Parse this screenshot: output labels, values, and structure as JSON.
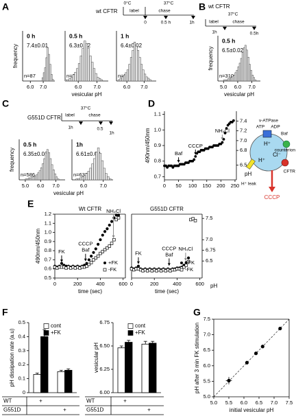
{
  "panels": [
    "A",
    "B",
    "C",
    "D",
    "E",
    "F",
    "G"
  ],
  "schematic_a": {
    "title": "wt CFTR",
    "temps": [
      "0°C",
      "37°C"
    ],
    "phases": [
      "label",
      "chase"
    ],
    "times": [
      "0",
      "0.5 h",
      "1h"
    ]
  },
  "schematic_b": {
    "title": "wt CFTR",
    "temp": "37°C",
    "phases": [
      "label",
      "chase"
    ],
    "times": [
      "1h",
      "0.5h"
    ]
  },
  "schematic_c": {
    "title": "G551D CFTR",
    "temp": "37°C",
    "phases": [
      "label",
      "chase"
    ],
    "times": [
      "1h",
      "0.5",
      "1h"
    ]
  },
  "diagram": {
    "pump": "v-ATPase",
    "atp": "ATP",
    "adp": "ADP",
    "inhibitor": "Baf",
    "counterion": "counterion",
    "proton": "H⁺",
    "chloride": "Cl⁻",
    "leak": "H⁺ leak",
    "channel": "CFTR",
    "uncoupler": "CCCP"
  },
  "chart_data": [
    {
      "type": "histogram",
      "title": "0 h",
      "mean_label": "7.4±0.01",
      "n_label": "n=87",
      "ylabel": "frequency",
      "xlim": [
        5.4,
        7.9
      ],
      "xticks": [
        {
          "value": 6,
          "label": "6.0"
        },
        {
          "value": 7,
          "label": "7.0"
        }
      ],
      "ylim": [
        0,
        30
      ],
      "bins": [
        6.9,
        7.0,
        7.1,
        7.2,
        7.3,
        7.4,
        7.5,
        7.6,
        7.7,
        7.8
      ],
      "counts": [
        2,
        5,
        8,
        14,
        20,
        16,
        10,
        4,
        1
      ]
    },
    {
      "type": "histogram",
      "title": "0.5 h",
      "mean_label": "6.3±0.02",
      "n_label": "n=350",
      "xlabel": "vesicular pH",
      "xlim": [
        5.3,
        7.6
      ],
      "xticks": [
        {
          "value": 6,
          "label": "6.0"
        },
        {
          "value": 7,
          "label": "7.0"
        }
      ],
      "ylim": [
        0,
        40
      ],
      "bins": [
        5.3,
        5.4,
        5.5,
        5.6,
        5.7,
        5.8,
        5.9,
        6.0,
        6.1,
        6.2,
        6.3,
        6.4,
        6.5,
        6.6,
        6.7,
        6.8,
        6.9,
        7.0,
        7.1,
        7.2,
        7.3
      ],
      "counts": [
        1,
        1,
        2,
        3,
        5,
        7,
        10,
        14,
        20,
        26,
        32,
        30,
        26,
        20,
        15,
        10,
        6,
        3,
        2,
        1
      ]
    },
    {
      "type": "histogram",
      "title": "1 h",
      "mean_label": "6.4±0.02",
      "n_label": "n=304",
      "xlim": [
        5.4,
        7.7
      ],
      "xticks": [
        {
          "value": 6,
          "label": "6.0"
        },
        {
          "value": 7,
          "label": "7.0"
        }
      ],
      "ylim": [
        0,
        36
      ],
      "bins": [
        5.5,
        5.6,
        5.7,
        5.8,
        5.9,
        6.0,
        6.1,
        6.2,
        6.3,
        6.4,
        6.5,
        6.6,
        6.7,
        6.8,
        6.9,
        7.0,
        7.1,
        7.2,
        7.3,
        7.4
      ],
      "counts": [
        1,
        2,
        3,
        4,
        6,
        8,
        12,
        17,
        22,
        28,
        25,
        22,
        17,
        12,
        8,
        5,
        3,
        2,
        1
      ]
    },
    {
      "type": "histogram",
      "title": "0.5 h",
      "mean_label": "6.5±0.02",
      "n_label": "n=310",
      "ylabel": "frequency",
      "xlabel": "vesicular pH",
      "xlim": [
        4.6,
        7.6
      ],
      "xticks": [
        {
          "value": 5,
          "label": "5.0"
        },
        {
          "value": 6,
          "label": "6.0"
        },
        {
          "value": 7,
          "label": "7.0"
        }
      ],
      "ylim": [
        0,
        38
      ],
      "bins": [
        5.0,
        5.1,
        5.2,
        5.3,
        5.4,
        5.5,
        5.6,
        5.7,
        5.8,
        5.9,
        6.0,
        6.1,
        6.2,
        6.3,
        6.4,
        6.5,
        6.6,
        6.7,
        6.8,
        6.9,
        7.0,
        7.1,
        7.2,
        7.3
      ],
      "counts": [
        1,
        1,
        1,
        2,
        2,
        3,
        4,
        5,
        7,
        9,
        12,
        15,
        19,
        24,
        28,
        30,
        26,
        20,
        14,
        9,
        5,
        3,
        1
      ]
    },
    {
      "type": "histogram",
      "title": "0.5 h",
      "mean_label": "6.35±0.02",
      "n_label": "n=586",
      "ylabel": "frequency",
      "xlabel": "vesicular pH",
      "xlim": [
        4.6,
        7.6
      ],
      "xticks": [
        {
          "value": 5,
          "label": "5.0"
        },
        {
          "value": 6,
          "label": "6.0"
        },
        {
          "value": 7,
          "label": "7.0"
        }
      ],
      "ylim": [
        0,
        40
      ],
      "bins": [
        5.0,
        5.1,
        5.2,
        5.3,
        5.4,
        5.5,
        5.6,
        5.7,
        5.8,
        5.9,
        6.0,
        6.1,
        6.2,
        6.3,
        6.4,
        6.5,
        6.6,
        6.7,
        6.8,
        6.9,
        7.0,
        7.1,
        7.2
      ],
      "counts": [
        1,
        1,
        2,
        2,
        3,
        3,
        4,
        5,
        7,
        9,
        12,
        16,
        21,
        26,
        30,
        27,
        21,
        15,
        10,
        6,
        3,
        1
      ]
    },
    {
      "type": "histogram",
      "title": "1h",
      "mean_label": "6.61±0.02",
      "n_label": "n=632",
      "xlim": [
        5.4,
        7.5
      ],
      "xticks": [
        {
          "value": 6,
          "label": "6.0"
        },
        {
          "value": 7,
          "label": "7.0"
        }
      ],
      "ylim": [
        0,
        38
      ],
      "bins": [
        5.6,
        5.7,
        5.8,
        5.9,
        6.0,
        6.1,
        6.2,
        6.3,
        6.4,
        6.5,
        6.6,
        6.7,
        6.8,
        6.9,
        7.0,
        7.1,
        7.2,
        7.3,
        7.4
      ],
      "counts": [
        1,
        1,
        2,
        3,
        4,
        6,
        8,
        11,
        15,
        20,
        26,
        30,
        25,
        18,
        11,
        6,
        3,
        1
      ]
    },
    {
      "type": "scatter",
      "ylabel": "490nm/450nm",
      "y2label": "pH",
      "marker": "circle",
      "color": "#000000",
      "x": [
        0,
        5,
        10,
        15,
        20,
        25,
        30,
        35,
        40,
        45,
        50,
        55,
        60,
        65,
        70,
        75,
        80,
        85,
        90,
        95,
        100,
        105,
        110,
        115,
        120,
        125,
        130,
        135,
        140,
        145,
        150,
        155,
        160,
        165,
        170,
        175,
        180,
        185,
        190,
        195,
        200,
        205,
        210,
        215,
        220,
        225,
        230,
        235,
        240,
        245
      ],
      "values": [
        0.77,
        0.77,
        0.76,
        0.77,
        0.77,
        0.77,
        0.76,
        0.77,
        0.77,
        0.77,
        0.77,
        0.78,
        0.78,
        0.78,
        0.78,
        0.79,
        0.79,
        0.79,
        0.8,
        0.8,
        0.8,
        0.81,
        0.83,
        0.85,
        0.86,
        0.86,
        0.87,
        0.87,
        0.87,
        0.88,
        0.88,
        0.88,
        0.89,
        0.89,
        0.89,
        0.9,
        0.9,
        0.9,
        0.9,
        0.91,
        0.91,
        0.92,
        0.94,
        0.98,
        1.01,
        1.03,
        1.04,
        1.05,
        1.05,
        1.06
      ],
      "xlim": [
        0,
        255
      ],
      "xticks": [
        0,
        50,
        100,
        150,
        200,
        250
      ],
      "ylim": [
        0.68,
        1.12
      ],
      "yticks": [
        0.7,
        0.8,
        0.9,
        {
          "value": 1,
          "label": "1.0"
        },
        1.1
      ],
      "y2lim": [
        6.2,
        7.6
      ],
      "y2ticks": [
        6.5,
        6.8,
        {
          "value": 7,
          "label": "7.0"
        },
        7.2,
        7.4
      ],
      "annotations": [
        "Baf",
        "CCCP",
        "NH₄Cl"
      ]
    },
    {
      "type": "scatter",
      "title": "Wt CFTR",
      "ylabel": "490nm/450nm",
      "xlabel": "time (sec)",
      "x": [
        0,
        20,
        40,
        60,
        80,
        100,
        120,
        140,
        160,
        180,
        200,
        220,
        240,
        260,
        280,
        300,
        320,
        340,
        360,
        380,
        400,
        420,
        440,
        460,
        480,
        500,
        520,
        540,
        560
      ],
      "series": [
        {
          "name": "+FK",
          "marker": "circle",
          "color": "#000000",
          "values": [
            0.63,
            0.62,
            0.63,
            0.66,
            0.64,
            0.63,
            0.63,
            0.62,
            0.63,
            0.62,
            0.63,
            0.62,
            0.63,
            0.64,
            0.66,
            0.7,
            0.74,
            0.78,
            0.82,
            0.87,
            0.92,
            0.97,
            1.01,
            1.04,
            1.08,
            1.12,
            1.16,
            1.19,
            1.19
          ]
        },
        {
          "name": "-FK",
          "marker": "square",
          "color": "#000000",
          "values": [
            0.62,
            0.61,
            0.62,
            0.62,
            0.62,
            0.61,
            0.62,
            0.61,
            0.62,
            0.61,
            0.62,
            0.61,
            0.62,
            0.62,
            0.63,
            0.65,
            0.67,
            0.7,
            0.72,
            0.74,
            0.77,
            0.79,
            0.81,
            0.83,
            0.85,
            0.88,
            0.92,
            1.14,
            1.16
          ]
        }
      ],
      "xlim": [
        0,
        620
      ],
      "xticks": [
        0,
        200,
        400,
        600
      ],
      "ylim": [
        0.5,
        1.2
      ],
      "yticks": [
        0.5,
        0.6,
        0.7,
        0.8,
        0.9,
        {
          "value": 1,
          "label": "1.0"
        },
        1.1,
        1.2
      ],
      "annotations": [
        "FK",
        "CCCP",
        "Baf",
        "NH₄Cl"
      ]
    },
    {
      "type": "scatter",
      "title": "G551D CFTR",
      "xlabel": "time (sec)",
      "y2label": "pH",
      "x": [
        0,
        20,
        40,
        60,
        80,
        100,
        120,
        140,
        160,
        180,
        200,
        220,
        240,
        260,
        280,
        300,
        320,
        340,
        360,
        380,
        400,
        420,
        440,
        460,
        480,
        500,
        520,
        540,
        560
      ],
      "series": [
        {
          "name": "+FK",
          "marker": "circle",
          "color": "#000000",
          "values": [
            0.61,
            0.6,
            0.61,
            0.63,
            0.6,
            0.59,
            0.6,
            0.59,
            0.6,
            0.59,
            0.6,
            0.59,
            0.6,
            0.59,
            0.6,
            0.59,
            0.6,
            0.59,
            0.6,
            0.6,
            0.61,
            0.61,
            0.62,
            0.64,
            0.67,
            0.72,
            null,
            null,
            null
          ]
        },
        {
          "name": "-FK",
          "marker": "square",
          "color": "#000000",
          "values": [
            0.6,
            0.59,
            0.6,
            0.6,
            0.59,
            0.58,
            0.59,
            0.58,
            0.59,
            0.58,
            0.59,
            0.58,
            0.59,
            0.58,
            0.59,
            0.58,
            0.59,
            0.58,
            0.59,
            0.59,
            0.6,
            0.6,
            0.61,
            0.62,
            0.64,
            0.68,
            1.14,
            1.15,
            1.13
          ]
        }
      ],
      "xlim": [
        0,
        620
      ],
      "xticks": [
        0,
        200,
        400,
        600
      ],
      "ylim": [
        0.5,
        1.2
      ],
      "y2lim": [
        6.1,
        7.6
      ],
      "y2ticks": [
        6.5,
        6.75,
        {
          "value": 7,
          "label": "7.0"
        },
        7.5
      ],
      "annotations": [
        "FK",
        "CCCP",
        "Baf",
        "NH₄Cl"
      ]
    },
    {
      "type": "bar",
      "ylabel": "pH dissipation rate (a.u)",
      "categories": [
        "WT",
        "G551D"
      ],
      "table_mark": "+",
      "series": [
        {
          "name": "cont",
          "color": "#ffffff",
          "values": [
            0.13,
            0.15
          ],
          "errors": [
            0.01,
            0.01
          ]
        },
        {
          "name": "+FK",
          "color": "#000000",
          "values": [
            0.4,
            0.16
          ],
          "errors": [
            0.05,
            0.01
          ]
        }
      ],
      "ylim": [
        0,
        0.5
      ],
      "yticks": [
        0,
        0.1,
        0.2,
        0.3,
        0.4,
        0.5
      ]
    },
    {
      "type": "bar",
      "ylabel": "vesicular pH",
      "categories": [
        "WT",
        "G551D"
      ],
      "table_mark": "+",
      "series": [
        {
          "name": "cont",
          "color": "#ffffff",
          "values": [
            6.48,
            6.52
          ],
          "errors": [
            0.02,
            0.03
          ]
        },
        {
          "name": "+FK",
          "color": "#000000",
          "values": [
            6.54,
            6.53
          ],
          "errors": [
            0.02,
            0.02
          ]
        }
      ],
      "ylim": [
        6.0,
        6.75
      ],
      "yticks": [
        {
          "value": 6,
          "label": "6.00"
        },
        {
          "value": 6.25,
          "label": "6.25"
        },
        {
          "value": 6.5,
          "label": "6.50"
        },
        {
          "value": 6.75,
          "label": "6.75"
        }
      ]
    },
    {
      "type": "scatter",
      "xlabel": "initial vesicular pH",
      "ylabel": "pH after 3 min FK stimulation",
      "marker": "circle",
      "color": "#000000",
      "x": [
        5.5,
        6.1,
        6.4,
        6.62,
        7.2
      ],
      "x_errors": [
        0.1,
        0.02,
        0.02,
        0.04,
        0.02
      ],
      "values": [
        5.52,
        6.1,
        6.4,
        6.62,
        7.2
      ],
      "errors": [
        0.12,
        0.03,
        0.03,
        0.05,
        0.03
      ],
      "xlim": [
        5,
        7.5
      ],
      "xticks": [
        {
          "value": 5,
          "label": "5.0"
        },
        {
          "value": 5.5,
          "label": "5.5"
        },
        {
          "value": 6,
          "label": "6.0"
        },
        {
          "value": 6.5,
          "label": "6.5"
        },
        {
          "value": 7,
          "label": "7.0"
        },
        {
          "value": 7.5,
          "label": "7.5"
        }
      ],
      "ylim": [
        5,
        7.5
      ],
      "yticks": [
        {
          "value": 5,
          "label": "5.0"
        },
        {
          "value": 5.5,
          "label": "5.5"
        },
        {
          "value": 6,
          "label": "6.0"
        },
        {
          "value": 6.5,
          "label": "6.5"
        },
        {
          "value": 7,
          "label": "7.0"
        },
        {
          "value": 7.5,
          "label": "7.5"
        }
      ]
    }
  ]
}
